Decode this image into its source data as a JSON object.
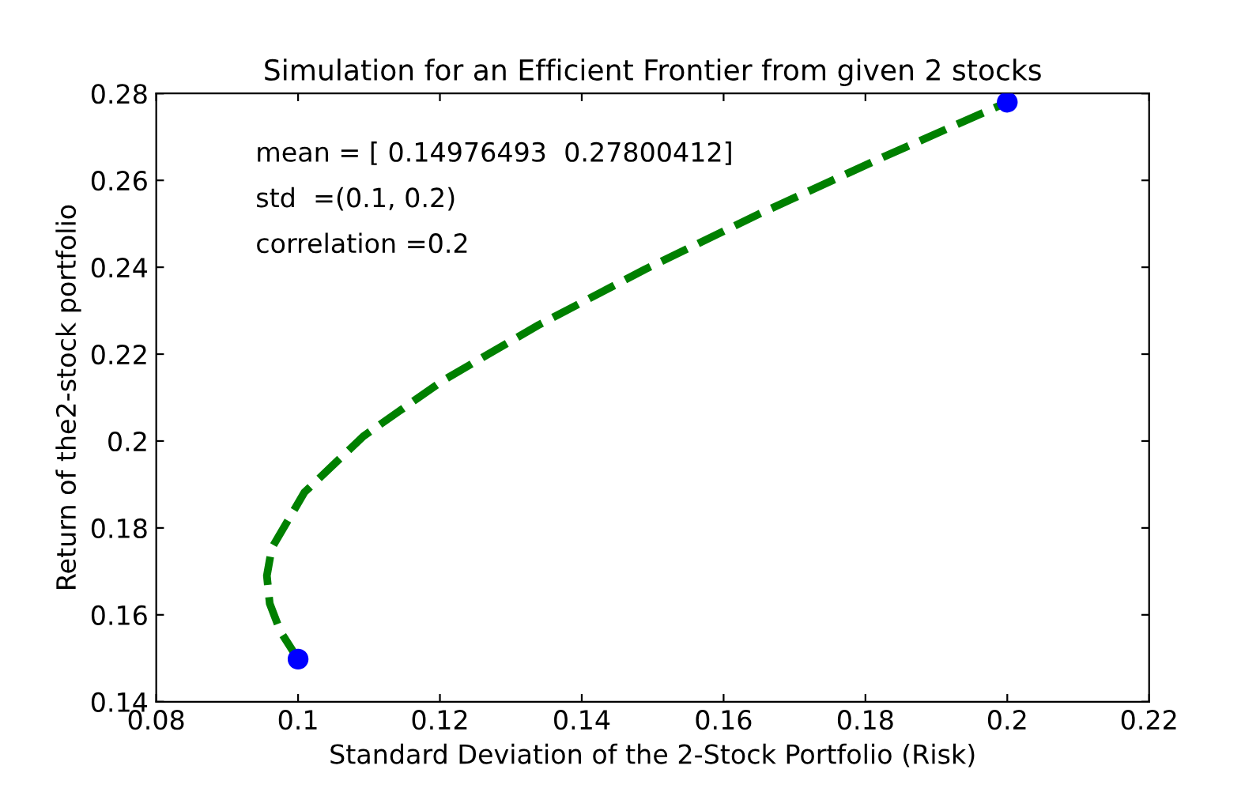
{
  "chart_data": {
    "type": "line",
    "title": "Simulation for an Efficient Frontier from given 2 stocks",
    "xlabel": "Standard Deviation of the 2-Stock Portfolio (Risk)",
    "ylabel": "Return of the2-stock portfolio",
    "annotations": [
      "mean = [ 0.14976493  0.27800412]",
      "std  =(0.1, 0.2)",
      "correlation =0.2"
    ],
    "series": [
      {
        "color": "#008000",
        "line_style": "dashed",
        "marker": "none",
        "x": [
          0.1,
          0.0975,
          0.096,
          0.0956,
          0.0963,
          0.1009,
          0.1092,
          0.1204,
          0.1339,
          0.1489,
          0.1652,
          0.1823,
          0.2
        ],
        "values": [
          0.1498,
          0.1562,
          0.1626,
          0.169,
          0.1754,
          0.1882,
          0.2011,
          0.2139,
          0.2267,
          0.2395,
          0.2524,
          0.2652,
          0.278
        ]
      },
      {
        "type": "scatter",
        "color": "#0000ff",
        "marker": "circle",
        "x": [
          0.1,
          0.2
        ],
        "values": [
          0.1498,
          0.278
        ]
      }
    ],
    "xlim": [
      0.08,
      0.22
    ],
    "xticks": [
      0.08,
      0.1,
      0.12,
      0.14,
      0.16,
      0.18,
      0.2,
      0.22
    ],
    "ylim": [
      0.14,
      0.28
    ],
    "yticks": [
      0.14,
      0.16,
      0.18,
      0.2,
      0.22,
      0.24,
      0.26,
      0.28
    ],
    "grid": false,
    "legend": false
  }
}
